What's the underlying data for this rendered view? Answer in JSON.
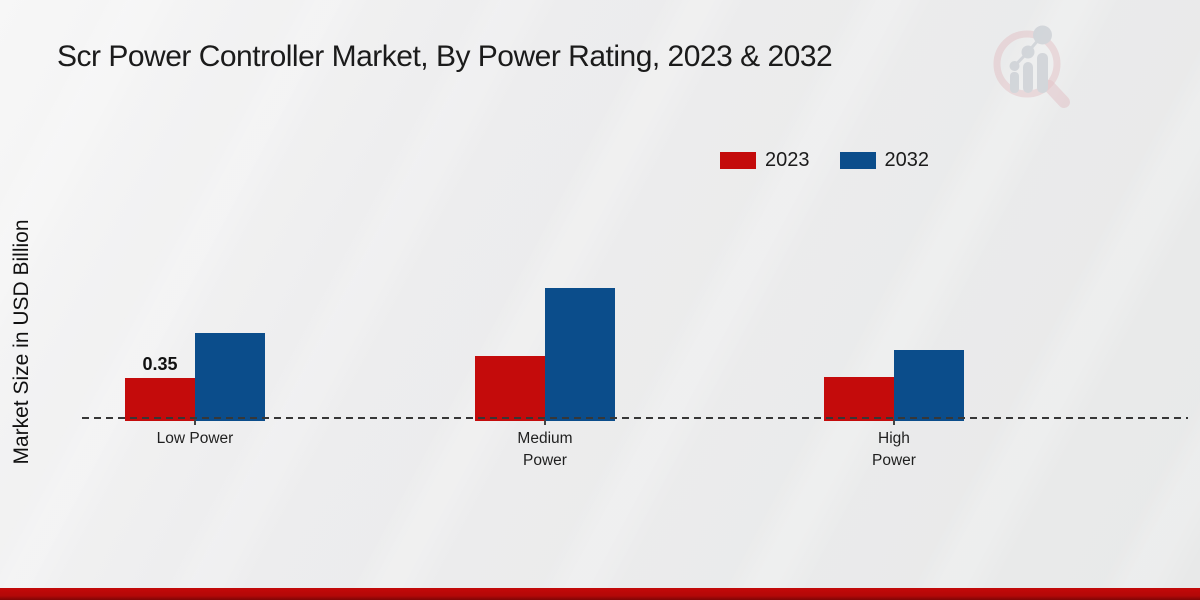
{
  "title": "Scr Power Controller Market, By Power Rating, 2023 & 2032",
  "ylabel": "Market Size in USD Billion",
  "logo_icon": "magnifier-bar-chart-watermark-icon",
  "colors": {
    "series_2023": "#c40b0b",
    "series_2032": "#0b4d8b",
    "baseline": "#373737",
    "footer_bar": "#b20808",
    "logo_pink": "#d89aa2",
    "logo_gray": "#b9bfc7"
  },
  "chart_data": {
    "type": "bar",
    "title": "Scr Power Controller Market, By Power Rating, 2023 & 2032",
    "ylabel": "Market Size in USD Billion",
    "categories": [
      "Low Power",
      "Medium Power",
      "High Power"
    ],
    "tick_labels": [
      "Low Power",
      "Medium\nPower",
      "High\nPower"
    ],
    "series": [
      {
        "name": "2023",
        "color": "#c40b0b",
        "values": [
          0.35,
          0.55,
          0.36
        ]
      },
      {
        "name": "2032",
        "color": "#0b4d8b",
        "values": [
          0.75,
          1.15,
          0.6
        ]
      }
    ],
    "annotations": [
      {
        "series": "2023",
        "category": "Low Power",
        "text": "0.35"
      }
    ],
    "ylim": [
      0,
      1.25
    ],
    "grid": false,
    "y_axis_ticks_visible": false,
    "baseline_style": "dashed",
    "legend_position": "top-right"
  }
}
